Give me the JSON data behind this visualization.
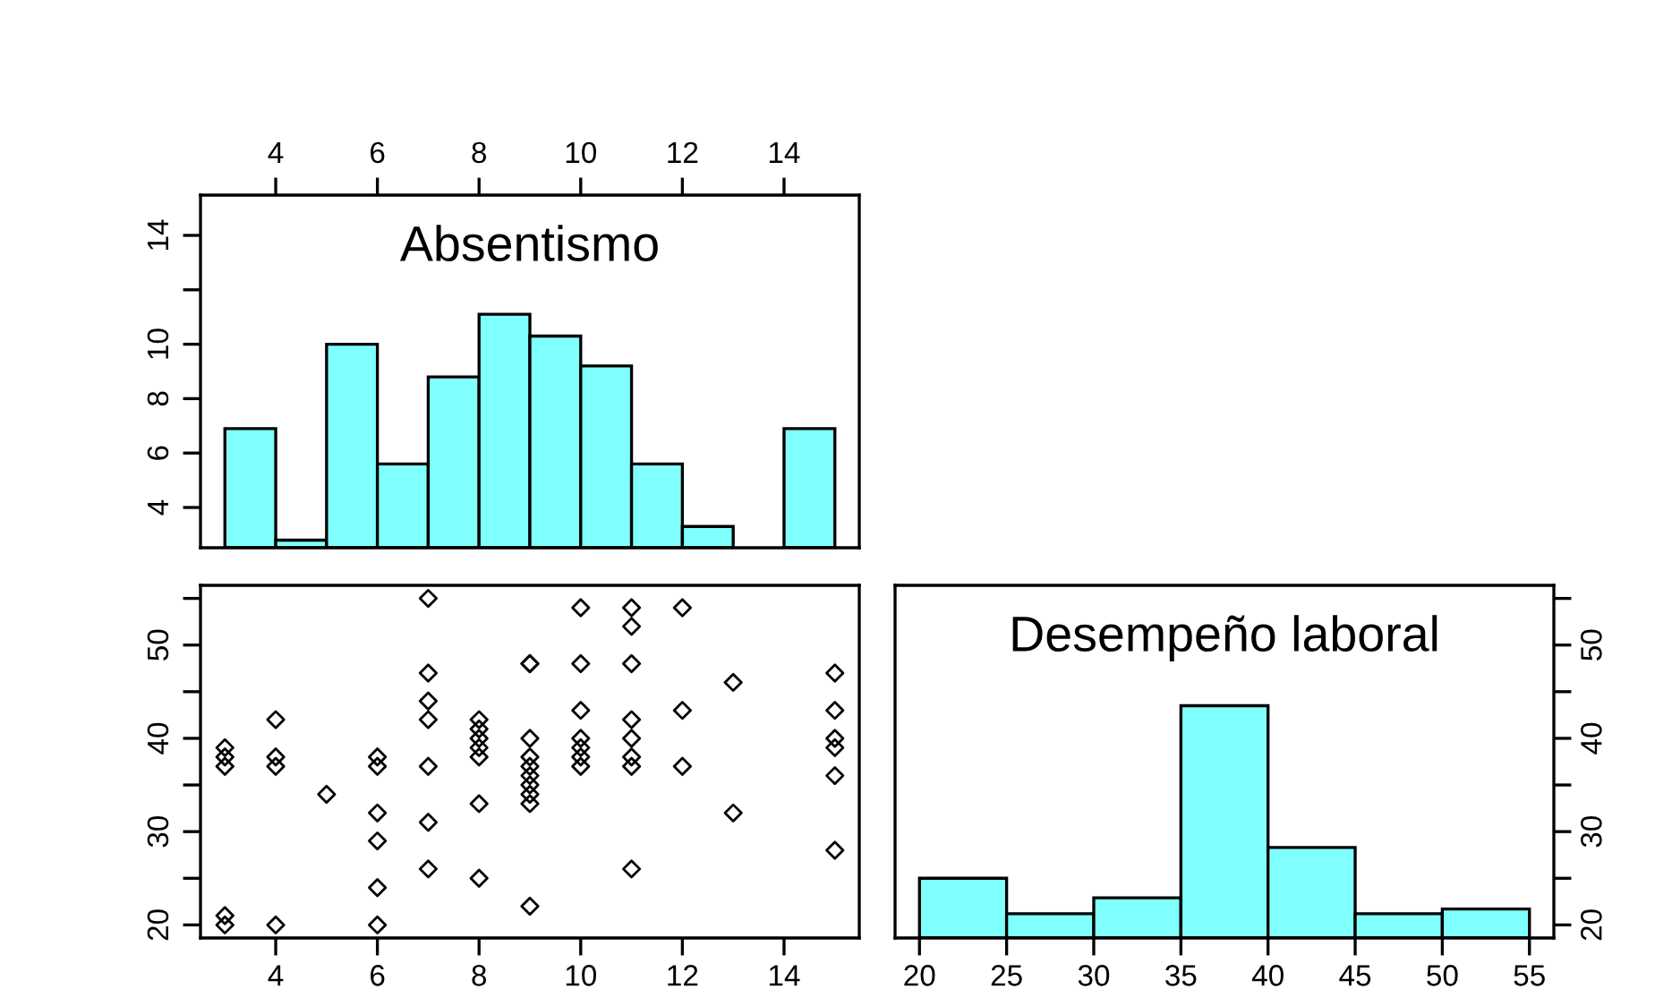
{
  "chart_data": [
    {
      "type": "histogram",
      "title": "Absentismo",
      "bins": [
        3,
        4,
        5,
        6,
        7,
        8,
        9,
        10,
        11,
        12,
        13,
        14,
        15
      ],
      "values": [
        6.9,
        2.8,
        10.0,
        5.6,
        8.8,
        11.1,
        10.3,
        9.2,
        5.6,
        3.3,
        null,
        6.9
      ],
      "color": "#80ffff",
      "xlim": [
        2.52,
        15.48
      ],
      "ylim": [
        2.52,
        15.48
      ],
      "xticks": [
        4,
        6,
        8,
        10,
        12,
        14
      ],
      "yticks": [
        4,
        6,
        8,
        10,
        {
          "value": 12,
          "label": null
        },
        14
      ],
      "grid": false
    },
    {
      "type": "scatter",
      "marker": "diamond",
      "color": "#000000",
      "x": [
        3,
        3,
        3,
        3,
        3,
        4,
        4,
        4,
        4,
        5,
        6,
        6,
        6,
        6,
        6,
        6,
        7,
        7,
        7,
        7,
        7,
        7,
        7,
        8,
        8,
        8,
        8,
        8,
        8,
        8,
        9,
        9,
        9,
        9,
        9,
        9,
        9,
        9,
        9,
        9,
        10,
        10,
        10,
        10,
        10,
        10,
        10,
        11,
        11,
        11,
        11,
        11,
        11,
        11,
        11,
        12,
        12,
        12,
        13,
        13,
        15,
        15,
        15,
        15,
        15,
        15
      ],
      "values": [
        39,
        38,
        37,
        21,
        20,
        42,
        38,
        37,
        20,
        34,
        38,
        37,
        32,
        29,
        24,
        20,
        55,
        47,
        44,
        42,
        37,
        31,
        26,
        42,
        41,
        40,
        39,
        38,
        33,
        25,
        48,
        40,
        38,
        37,
        36,
        35,
        34,
        33,
        22,
        48,
        54,
        48,
        43,
        40,
        39,
        38,
        37,
        54,
        52,
        48,
        42,
        40,
        38,
        37,
        26,
        54,
        43,
        37,
        46,
        32,
        47,
        43,
        40,
        39,
        36,
        28
      ],
      "xlim": [
        2.52,
        15.48
      ],
      "ylim": [
        18.6,
        56.4
      ],
      "xticks": [
        4,
        6,
        8,
        10,
        12,
        14
      ],
      "yticks": [
        20,
        {
          "value": 25,
          "label": null
        },
        30,
        {
          "value": 35,
          "label": null
        },
        40,
        {
          "value": 45,
          "label": null
        },
        50,
        {
          "value": 55,
          "label": null
        }
      ],
      "grid": false
    },
    {
      "type": "histogram",
      "title": "Desempeño laboral",
      "bins": [
        20,
        25,
        30,
        35,
        40,
        45,
        50,
        55
      ],
      "values": [
        25.0,
        21.2,
        22.9,
        43.5,
        28.3,
        21.2,
        21.7
      ],
      "color": "#80ffff",
      "xlim": [
        18.6,
        56.4
      ],
      "ylim": [
        18.6,
        56.4
      ],
      "xticks": [
        20,
        25,
        30,
        35,
        40,
        45,
        50,
        55
      ],
      "yticks": [
        20,
        {
          "value": 25,
          "label": null
        },
        30,
        {
          "value": 35,
          "label": null
        },
        40,
        {
          "value": 45,
          "label": null
        },
        50,
        {
          "value": 55,
          "label": null
        }
      ],
      "grid": false
    }
  ]
}
